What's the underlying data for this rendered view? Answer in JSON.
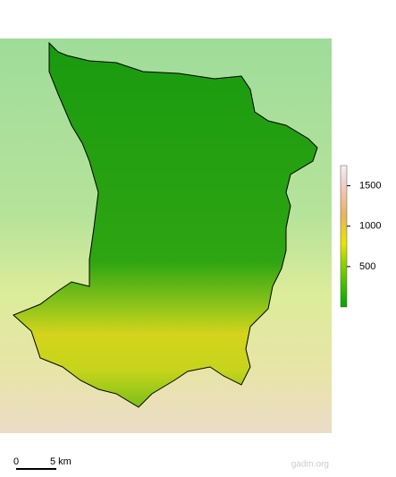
{
  "legend": {
    "lim": [
      0,
      1750
    ],
    "ticks": [
      500,
      1000,
      1500
    ]
  },
  "scale_bar": {
    "labels": [
      "0",
      "5 km"
    ]
  },
  "credit": "gadm.org"
}
